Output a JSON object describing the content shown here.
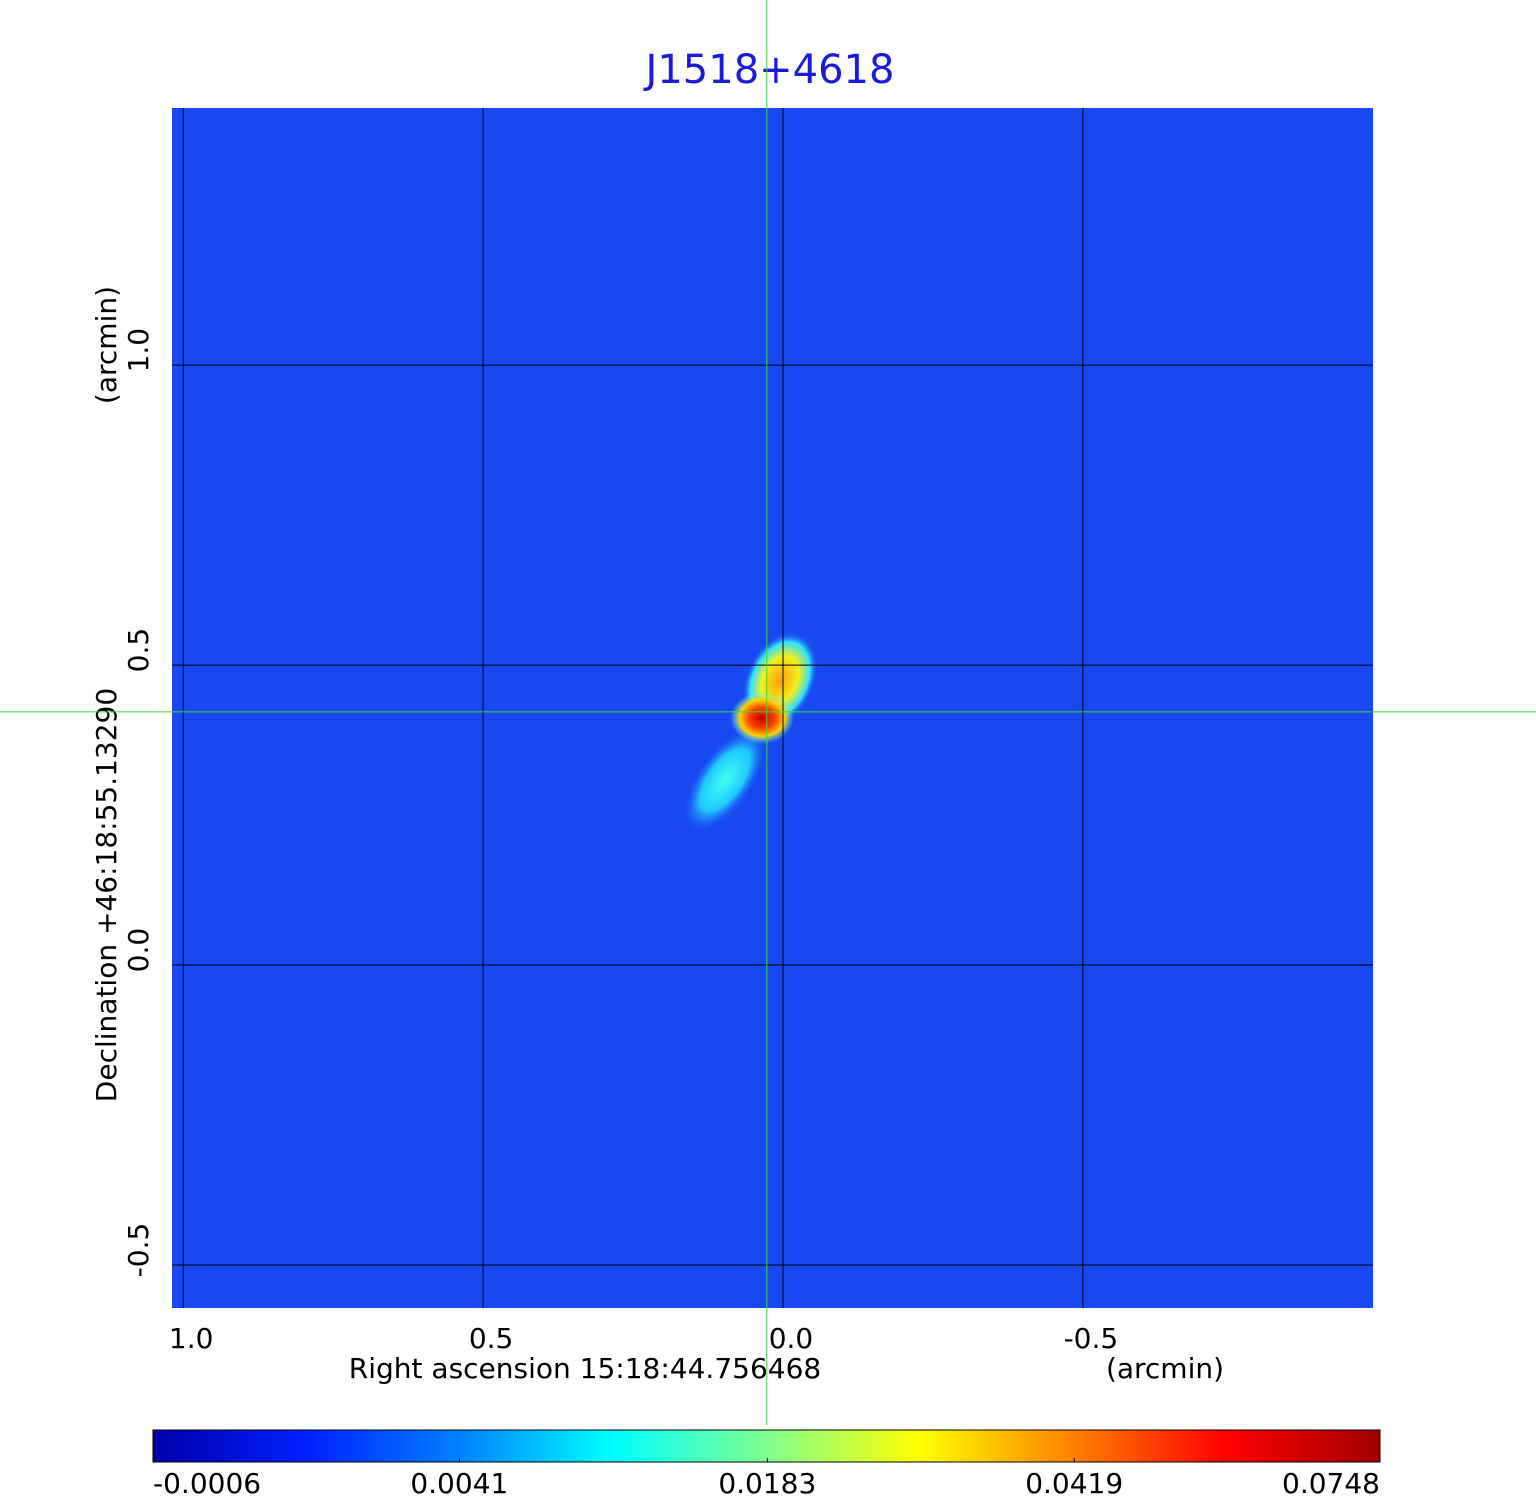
{
  "chart_data": {
    "type": "image",
    "title": "J1518+4618",
    "x_label": "Right ascension  15:18:44.756468",
    "x_unit": "(arcmin)",
    "y_label": "Declination  +46:18:55.13290",
    "y_unit": "(arcmin)",
    "xlim": [
      1.022,
      -0.987
    ],
    "ylim": [
      -0.575,
      1.432
    ],
    "xticks": [
      {
        "value": 1,
        "label": "1.0"
      },
      0.5,
      {
        "value": 0,
        "label": "0.0"
      },
      -0.5
    ],
    "yticks": [
      -0.5,
      {
        "value": 0,
        "label": "0.0"
      },
      0.5,
      {
        "value": 1,
        "label": "1.0"
      }
    ],
    "grid": true,
    "crosshair": [
      0.027,
      0.422
    ],
    "crosshair_color": "#33dd33",
    "colorbar": {
      "clim": [
        -0.0006,
        0.0748
      ],
      "scale": "sqrt",
      "ticks": [
        -0.0006,
        0.0041,
        0.0183,
        0.0419,
        0.0748
      ],
      "colors": [
        "#0000a8",
        "#0020ff",
        "#0080ff",
        "#00ffff",
        "#80ff90",
        "#ffff00",
        "#ff8000",
        "#ff0000",
        "#a00000"
      ]
    }
  }
}
